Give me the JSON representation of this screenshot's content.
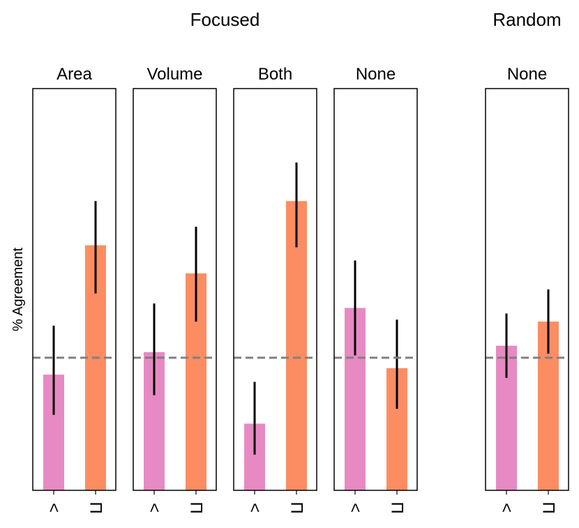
{
  "chart_data": {
    "type": "bar",
    "ylabel": "% Agreement",
    "ylim": [
      0,
      100
    ],
    "baseline": 33,
    "categories": [
      "<",
      "Π"
    ],
    "colors": {
      "lt": "#e78ac3",
      "pi": "#fc8d62",
      "baseline": "#808080",
      "error": "#000000"
    },
    "groups": [
      {
        "title": "Focused",
        "panels": [
          0,
          1,
          2,
          3
        ]
      },
      {
        "title": "Random",
        "panels": [
          4
        ]
      }
    ],
    "panels": [
      {
        "title": "Area",
        "group": "Focused",
        "bars": [
          {
            "category": "<",
            "value": 28.8,
            "err_low": 18.8,
            "err_high": 41.0
          },
          {
            "category": "Π",
            "value": 61.0,
            "err_low": 49.0,
            "err_high": 72.0
          }
        ]
      },
      {
        "title": "Volume",
        "group": "Focused",
        "bars": [
          {
            "category": "<",
            "value": 34.4,
            "err_low": 23.7,
            "err_high": 46.5
          },
          {
            "category": "Π",
            "value": 54.0,
            "err_low": 42.0,
            "err_high": 65.6
          }
        ]
      },
      {
        "title": "Both",
        "group": "Focused",
        "bars": [
          {
            "category": "<",
            "value": 16.6,
            "err_low": 8.9,
            "err_high": 27.0
          },
          {
            "category": "Π",
            "value": 72.0,
            "err_low": 60.5,
            "err_high": 81.6
          }
        ]
      },
      {
        "title": "None",
        "group": "Focused",
        "bars": [
          {
            "category": "<",
            "value": 45.4,
            "err_low": 33.6,
            "err_high": 57.2
          },
          {
            "category": "Π",
            "value": 30.4,
            "err_low": 20.3,
            "err_high": 42.5
          }
        ]
      },
      {
        "title": "None",
        "group": "Random",
        "bars": [
          {
            "category": "<",
            "value": 36.0,
            "err_low": 28.0,
            "err_high": 44.0
          },
          {
            "category": "Π",
            "value": 42.0,
            "err_low": 34.0,
            "err_high": 50.0
          }
        ]
      }
    ]
  }
}
